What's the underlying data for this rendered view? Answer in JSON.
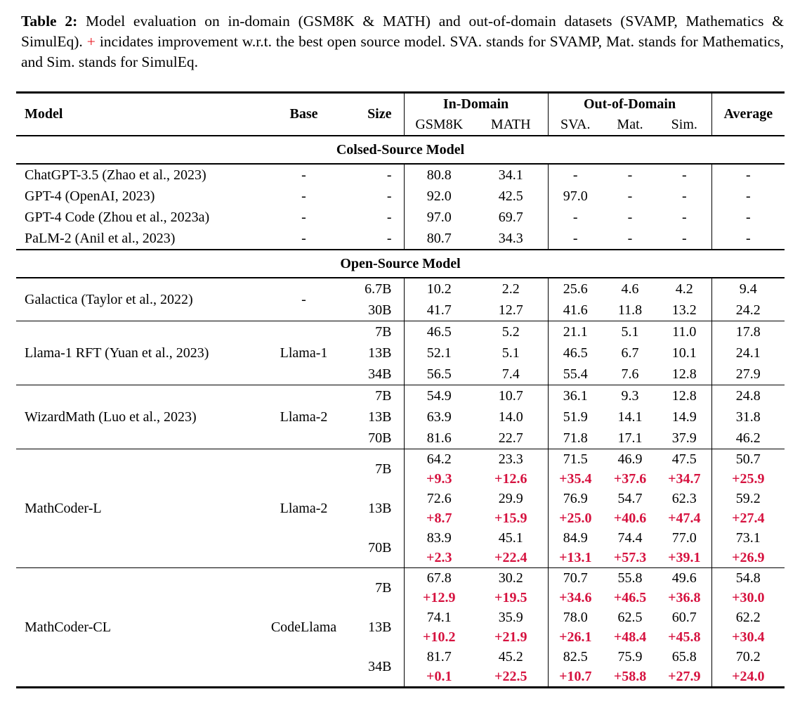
{
  "colors": {
    "delta_red": "#d6123f",
    "caption_plus_red": "#e8141e",
    "text": "#000000",
    "background": "#ffffff"
  },
  "caption": {
    "label": "Table 2:",
    "body1": "Model evaluation on in-domain (GSM8K & MATH) and out-of-domain datasets (SVAMP, Mathematics & SimulEq).",
    "plus": "+",
    "body2": "incidates improvement w.r.t. the best open source model. SVA. stands for SVAMP, Mat. stands for Mathematics, and Sim. stands for SimulEq."
  },
  "table": {
    "header": {
      "model": "Model",
      "base": "Base",
      "size": "Size",
      "in_domain": "In-Domain",
      "out_of_domain": "Out-of-Domain",
      "gsm8k": "GSM8K",
      "math": "MATH",
      "sva": "SVA.",
      "mat": "Mat.",
      "sim": "Sim.",
      "average": "Average"
    },
    "sections": [
      {
        "title": "Colsed-Source Model",
        "divided": false,
        "groups": [
          {
            "model": "ChatGPT-3.5 (Zhao et al., 2023)",
            "base": "-",
            "rows": [
              {
                "size": "-",
                "values": [
                  "80.8",
                  "34.1",
                  "-",
                  "-",
                  "-",
                  "-"
                ]
              }
            ]
          },
          {
            "model": "GPT-4 (OpenAI, 2023)",
            "base": "-",
            "rows": [
              {
                "size": "-",
                "values": [
                  "92.0",
                  "42.5",
                  "97.0",
                  "-",
                  "-",
                  "-"
                ]
              }
            ]
          },
          {
            "model": "GPT-4 Code (Zhou et al., 2023a)",
            "base": "-",
            "rows": [
              {
                "size": "-",
                "values": [
                  "97.0",
                  "69.7",
                  "-",
                  "-",
                  "-",
                  "-"
                ]
              }
            ]
          },
          {
            "model": "PaLM-2 (Anil et al., 2023)",
            "base": "-",
            "rows": [
              {
                "size": "-",
                "values": [
                  "80.7",
                  "34.3",
                  "-",
                  "-",
                  "-",
                  "-"
                ]
              }
            ]
          }
        ]
      },
      {
        "title": "Open-Source Model",
        "divided": true,
        "groups": [
          {
            "model": "Galactica (Taylor et al., 2022)",
            "base": "-",
            "rows": [
              {
                "size": "6.7B",
                "values": [
                  "10.2",
                  "2.2",
                  "25.6",
                  "4.6",
                  "4.2",
                  "9.4"
                ]
              },
              {
                "size": "30B",
                "values": [
                  "41.7",
                  "12.7",
                  "41.6",
                  "11.8",
                  "13.2",
                  "24.2"
                ]
              }
            ]
          },
          {
            "model": "Llama-1 RFT (Yuan et al., 2023)",
            "base": "Llama-1",
            "rows": [
              {
                "size": "7B",
                "values": [
                  "46.5",
                  "5.2",
                  "21.1",
                  "5.1",
                  "11.0",
                  "17.8"
                ]
              },
              {
                "size": "13B",
                "values": [
                  "52.1",
                  "5.1",
                  "46.5",
                  "6.7",
                  "10.1",
                  "24.1"
                ]
              },
              {
                "size": "34B",
                "values": [
                  "56.5",
                  "7.4",
                  "55.4",
                  "7.6",
                  "12.8",
                  "27.9"
                ]
              }
            ]
          },
          {
            "model": "WizardMath (Luo et al., 2023)",
            "base": "Llama-2",
            "rows": [
              {
                "size": "7B",
                "values": [
                  "54.9",
                  "10.7",
                  "36.1",
                  "9.3",
                  "12.8",
                  "24.8"
                ]
              },
              {
                "size": "13B",
                "values": [
                  "63.9",
                  "14.0",
                  "51.9",
                  "14.1",
                  "14.9",
                  "31.8"
                ]
              },
              {
                "size": "70B",
                "values": [
                  "81.6",
                  "22.7",
                  "71.8",
                  "17.1",
                  "37.9",
                  "46.2"
                ]
              }
            ]
          },
          {
            "model": "MathCoder-L",
            "base": "Llama-2",
            "rows": [
              {
                "size": "7B",
                "values": [
                  "64.2",
                  "23.3",
                  "71.5",
                  "46.9",
                  "47.5",
                  "50.7"
                ],
                "deltas": [
                  "+9.3",
                  "+12.6",
                  "+35.4",
                  "+37.6",
                  "+34.7",
                  "+25.9"
                ]
              },
              {
                "size": "13B",
                "values": [
                  "72.6",
                  "29.9",
                  "76.9",
                  "54.7",
                  "62.3",
                  "59.2"
                ],
                "deltas": [
                  "+8.7",
                  "+15.9",
                  "+25.0",
                  "+40.6",
                  "+47.4",
                  "+27.4"
                ]
              },
              {
                "size": "70B",
                "values": [
                  "83.9",
                  "45.1",
                  "84.9",
                  "74.4",
                  "77.0",
                  "73.1"
                ],
                "deltas": [
                  "+2.3",
                  "+22.4",
                  "+13.1",
                  "+57.3",
                  "+39.1",
                  "+26.9"
                ]
              }
            ]
          },
          {
            "model": "MathCoder-CL",
            "base": "CodeLlama",
            "rows": [
              {
                "size": "7B",
                "values": [
                  "67.8",
                  "30.2",
                  "70.7",
                  "55.8",
                  "49.6",
                  "54.8"
                ],
                "deltas": [
                  "+12.9",
                  "+19.5",
                  "+34.6",
                  "+46.5",
                  "+36.8",
                  "+30.0"
                ]
              },
              {
                "size": "13B",
                "values": [
                  "74.1",
                  "35.9",
                  "78.0",
                  "62.5",
                  "60.7",
                  "62.2"
                ],
                "deltas": [
                  "+10.2",
                  "+21.9",
                  "+26.1",
                  "+48.4",
                  "+45.8",
                  "+30.4"
                ]
              },
              {
                "size": "34B",
                "values": [
                  "81.7",
                  "45.2",
                  "82.5",
                  "75.9",
                  "65.8",
                  "70.2"
                ],
                "deltas": [
                  "+0.1",
                  "+22.5",
                  "+10.7",
                  "+58.8",
                  "+27.9",
                  "+24.0"
                ]
              }
            ]
          }
        ]
      }
    ]
  }
}
